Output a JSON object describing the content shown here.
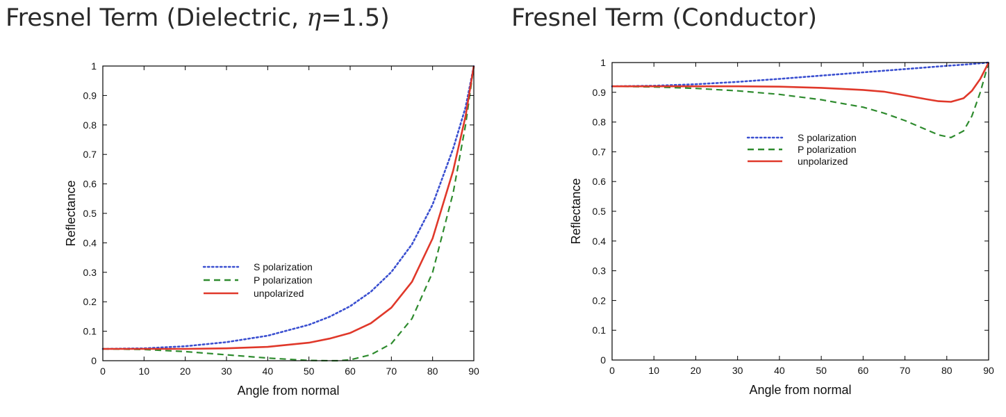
{
  "slide": {
    "left_title_prefix": "Fresnel Term (Dielectric, ",
    "left_title_eta": "η",
    "left_title_suffix": "=1.5)",
    "right_title": "Fresnel Term (Conductor)"
  },
  "chart_data": [
    {
      "type": "line",
      "title": "Fresnel Term (Dielectric, η=1.5)",
      "xlabel": "Angle from normal",
      "ylabel": "Reflectance",
      "xlim": [
        0,
        90
      ],
      "ylim": [
        0,
        1
      ],
      "xticks": [
        0,
        10,
        20,
        30,
        40,
        50,
        60,
        70,
        80,
        90
      ],
      "yticks": [
        0,
        0.1,
        0.2,
        0.3,
        0.4,
        0.5,
        0.6,
        0.7,
        0.8,
        0.9,
        1
      ],
      "xtick_labels": [
        "0",
        "10",
        "20",
        "30",
        "40",
        "50",
        "60",
        "70",
        "80",
        "90"
      ],
      "ytick_labels": [
        "0",
        "0.1",
        "0.2",
        "0.3",
        "0.4",
        "0.5",
        "0.6",
        "0.7",
        "0.8",
        "0.9",
        "1"
      ],
      "legend_position": "center",
      "series": [
        {
          "name": "S polarization",
          "color": "#3a4fd0",
          "style": "dotted",
          "x": [
            0,
            10,
            20,
            30,
            40,
            50,
            55,
            60,
            65,
            70,
            75,
            80,
            85,
            88,
            90
          ],
          "y": [
            0.04,
            0.042,
            0.049,
            0.063,
            0.085,
            0.122,
            0.149,
            0.185,
            0.234,
            0.301,
            0.395,
            0.53,
            0.72,
            0.86,
            1.0
          ]
        },
        {
          "name": "P polarization",
          "color": "#2e8b2e",
          "style": "dashed",
          "x": [
            0,
            10,
            20,
            30,
            40,
            50,
            55,
            57,
            60,
            65,
            70,
            75,
            80,
            85,
            88,
            90
          ],
          "y": [
            0.04,
            0.038,
            0.031,
            0.02,
            0.009,
            0.001,
            0.0,
            0.0,
            0.003,
            0.02,
            0.058,
            0.143,
            0.3,
            0.57,
            0.8,
            1.0
          ]
        },
        {
          "name": "unpolarized",
          "color": "#e0382a",
          "style": "solid",
          "x": [
            0,
            10,
            20,
            30,
            40,
            50,
            55,
            60,
            65,
            70,
            75,
            80,
            85,
            88,
            90
          ],
          "y": [
            0.04,
            0.04,
            0.04,
            0.042,
            0.047,
            0.061,
            0.075,
            0.094,
            0.127,
            0.18,
            0.268,
            0.415,
            0.645,
            0.83,
            1.0
          ]
        }
      ]
    },
    {
      "type": "line",
      "title": "Fresnel Term (Conductor)",
      "xlabel": "Angle from normal",
      "ylabel": "Reflectance",
      "xlim": [
        0,
        90
      ],
      "ylim": [
        0,
        1
      ],
      "xticks": [
        0,
        10,
        20,
        30,
        40,
        50,
        60,
        70,
        80,
        90
      ],
      "yticks": [
        0,
        0.1,
        0.2,
        0.3,
        0.4,
        0.5,
        0.6,
        0.7,
        0.8,
        0.9,
        1
      ],
      "xtick_labels": [
        "0",
        "10",
        "20",
        "30",
        "40",
        "50",
        "60",
        "70",
        "80",
        "90"
      ],
      "ytick_labels": [
        "0",
        "0.1",
        "0.2",
        "0.3",
        "0.4",
        "0.5",
        "0.6",
        "0.7",
        "0.8",
        "0.9",
        "1"
      ],
      "legend_position": "upper-center",
      "series": [
        {
          "name": "S polarization",
          "color": "#3a4fd0",
          "style": "dotted",
          "x": [
            0,
            10,
            20,
            30,
            40,
            50,
            60,
            70,
            80,
            85,
            90
          ],
          "y": [
            0.92,
            0.922,
            0.927,
            0.935,
            0.945,
            0.956,
            0.967,
            0.978,
            0.989,
            0.994,
            1.0
          ]
        },
        {
          "name": "P polarization",
          "color": "#2e8b2e",
          "style": "dashed",
          "x": [
            0,
            10,
            20,
            30,
            40,
            50,
            60,
            65,
            70,
            75,
            78,
            81,
            84,
            86,
            88,
            90
          ],
          "y": [
            0.92,
            0.918,
            0.913,
            0.905,
            0.893,
            0.875,
            0.85,
            0.83,
            0.805,
            0.775,
            0.757,
            0.748,
            0.77,
            0.82,
            0.9,
            1.0
          ]
        },
        {
          "name": "unpolarized",
          "color": "#e0382a",
          "style": "solid",
          "x": [
            0,
            10,
            20,
            30,
            40,
            50,
            60,
            65,
            70,
            75,
            78,
            81,
            84,
            86,
            88,
            90
          ],
          "y": [
            0.92,
            0.92,
            0.92,
            0.92,
            0.919,
            0.915,
            0.908,
            0.902,
            0.89,
            0.877,
            0.87,
            0.868,
            0.88,
            0.905,
            0.945,
            1.0
          ]
        }
      ]
    }
  ]
}
